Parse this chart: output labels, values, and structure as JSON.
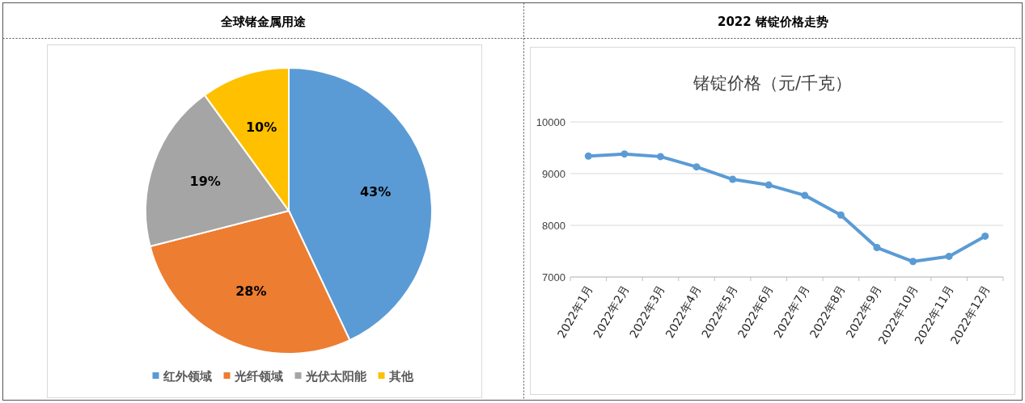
{
  "chart_data": [
    {
      "type": "pie",
      "title": "全球锗金属用途",
      "categories": [
        "红外领域",
        "光纤领域",
        "光伏太阳能",
        "其他"
      ],
      "values": [
        43,
        28,
        19,
        10
      ],
      "colors": [
        "#5b9bd5",
        "#ed7d31",
        "#a5a5a5",
        "#ffc000"
      ],
      "value_labels": [
        "43%",
        "28%",
        "19%",
        "10%"
      ],
      "legend": "bottom"
    },
    {
      "type": "line",
      "title": "2022 锗锭价格走势",
      "subtitle": "锗锭价格（元/千克）",
      "categories": [
        "2022年1月",
        "2022年2月",
        "2022年3月",
        "2022年4月",
        "2022年5月",
        "2022年6月",
        "2022年7月",
        "2022年8月",
        "2022年9月",
        "2022年10月",
        "2022年11月",
        "2022年12月"
      ],
      "series": [
        {
          "color": "#5b9bd5",
          "values": [
            9340,
            9380,
            9330,
            9130,
            8890,
            8780,
            8580,
            8200,
            7570,
            7300,
            7400,
            7790
          ]
        }
      ],
      "ylim": [
        7000,
        10000
      ],
      "yticks": [
        7000,
        8000,
        9000,
        10000
      ],
      "grid": "y",
      "marker": "circle",
      "line_style": "solid"
    }
  ]
}
